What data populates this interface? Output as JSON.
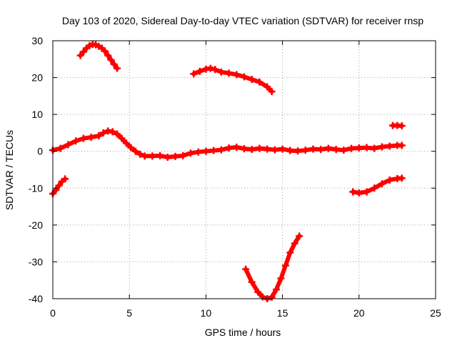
{
  "chart_data": {
    "type": "scatter",
    "title": "Day 103 of 2020, Sidereal Day-to-day VTEC variation (SDTVAR) for receiver rnsp",
    "xlabel": "GPS time / hours",
    "ylabel": "SDTVAR / TECUs",
    "xlim": [
      0,
      25
    ],
    "ylim": [
      -40,
      30
    ],
    "xticks": [
      0,
      5,
      10,
      15,
      20,
      25
    ],
    "yticks": [
      -40,
      -30,
      -20,
      -10,
      0,
      10,
      20,
      30
    ],
    "grid": true,
    "marker_color": "#ff0000",
    "series": [
      {
        "name": "arc-1",
        "x": [
          0.0,
          0.2,
          0.4,
          0.6,
          0.8
        ],
        "y": [
          -11.5,
          -10.5,
          -9.3,
          -8.2,
          -7.5
        ]
      },
      {
        "name": "arc-2",
        "x": [
          1.8,
          2.0,
          2.2,
          2.4,
          2.6,
          2.8,
          3.0,
          3.2,
          3.4,
          3.6,
          3.8,
          4.0,
          4.2
        ],
        "y": [
          26.0,
          27.0,
          28.0,
          28.7,
          29.0,
          28.9,
          28.5,
          28.0,
          27.2,
          26.0,
          24.8,
          23.6,
          22.5
        ]
      },
      {
        "name": "arc-3",
        "x": [
          0.0,
          0.5,
          1.0,
          1.5,
          2.0,
          2.5,
          3.0,
          3.3,
          3.6,
          3.9,
          4.2,
          4.5,
          4.8,
          5.1,
          5.4,
          5.7,
          6.0,
          6.5,
          7.0,
          7.5,
          8.0,
          8.5,
          9.0,
          9.5,
          10.0,
          10.5,
          11.0,
          11.5,
          12.0,
          12.5,
          13.0,
          13.5,
          14.0,
          14.5,
          15.0,
          15.5,
          16.0,
          16.5,
          17.0,
          17.5,
          18.0,
          18.5,
          19.0,
          19.5,
          20.0,
          20.5,
          21.0,
          21.5,
          22.0,
          22.5,
          22.8
        ],
        "y": [
          0.3,
          0.8,
          1.8,
          2.8,
          3.5,
          3.8,
          4.2,
          5.0,
          5.5,
          5.3,
          4.7,
          3.5,
          2.2,
          1.0,
          0.0,
          -0.8,
          -1.3,
          -1.3,
          -1.2,
          -1.6,
          -1.4,
          -1.2,
          -0.5,
          -0.2,
          0.0,
          0.2,
          0.4,
          0.9,
          1.1,
          0.7,
          0.5,
          0.8,
          0.6,
          0.4,
          0.6,
          0.2,
          0.1,
          0.3,
          0.6,
          0.5,
          0.8,
          0.5,
          0.3,
          0.8,
          0.9,
          1.0,
          0.8,
          1.2,
          1.4,
          1.6,
          1.6
        ]
      },
      {
        "name": "arc-4",
        "x": [
          9.2,
          9.6,
          10.0,
          10.3,
          10.6,
          11.0,
          11.5,
          12.0,
          12.5,
          13.0,
          13.5,
          14.0,
          14.3
        ],
        "y": [
          21.0,
          21.7,
          22.3,
          22.5,
          22.2,
          21.5,
          21.2,
          20.8,
          20.2,
          19.5,
          18.8,
          17.5,
          16.2
        ]
      },
      {
        "name": "arc-5",
        "x": [
          12.6,
          13.0,
          13.4,
          13.7,
          14.0,
          14.3,
          14.6,
          14.9,
          15.2,
          15.5,
          15.8,
          16.1
        ],
        "y": [
          -32.0,
          -35.5,
          -38.2,
          -39.5,
          -40.0,
          -39.6,
          -37.5,
          -34.5,
          -31.0,
          -27.5,
          -25.0,
          -23.0
        ]
      },
      {
        "name": "arc-6",
        "x": [
          19.6,
          20.0,
          20.5,
          21.0,
          21.5,
          22.0,
          22.5,
          22.8
        ],
        "y": [
          -11.0,
          -11.3,
          -11.0,
          -10.0,
          -8.8,
          -7.8,
          -7.4,
          -7.3
        ]
      },
      {
        "name": "arc-7",
        "x": [
          22.2,
          22.5,
          22.8
        ],
        "y": [
          7.0,
          7.0,
          6.9
        ]
      }
    ]
  }
}
